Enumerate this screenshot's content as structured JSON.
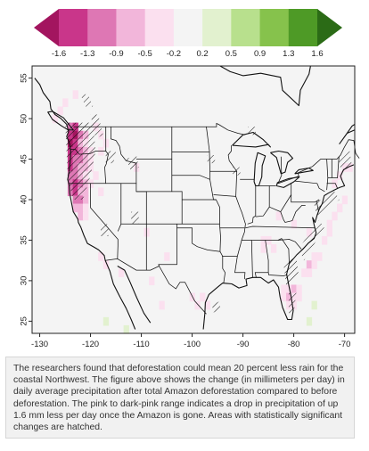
{
  "colorbar": {
    "ticks": [
      "-1.6",
      "-1.3",
      "-0.9",
      "-0.5",
      "-0.2",
      "0.2",
      "0.5",
      "0.9",
      "1.3",
      "1.6"
    ],
    "colors": [
      "#a3155f",
      "#c9368a",
      "#de77b4",
      "#f2b6da",
      "#fbe0ef",
      "#f4f4f4",
      "#e2f1cf",
      "#b8e08d",
      "#86c24c",
      "#4e9a26",
      "#2b6b16"
    ],
    "unit_note": "mm per day"
  },
  "map": {
    "x_ticks": [
      "-130",
      "-120",
      "-110",
      "-100",
      "-90",
      "-80",
      "-70"
    ],
    "y_ticks": [
      "55",
      "50",
      "45",
      "40",
      "35",
      "30",
      "25"
    ],
    "lon_range": [
      -131.5,
      -68
    ],
    "lat_range": [
      23.5,
      56.5
    ],
    "hatch_color": "#111111",
    "features": [
      "drying-coastal-northwest",
      "drying-southeast-coast",
      "hatched-significance"
    ]
  },
  "caption": {
    "text": "The researchers found that deforestation could mean 20 percent less rain for the coastal Northwest. The figure above shows the change (in millimeters per day) in daily average precipitation after total Amazon deforestation compared to before deforestation. The pink to dark-pink range indicates a drop in precipitation of up 1.6 mm less per day once the Amazon is gone. Areas with statistically significant changes are hatched."
  }
}
